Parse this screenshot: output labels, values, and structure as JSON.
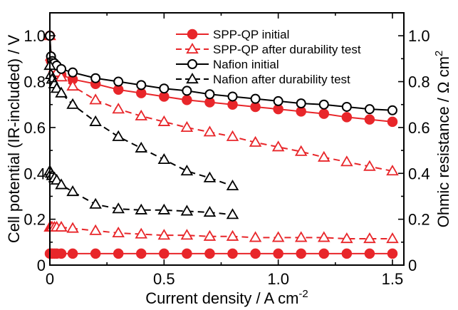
{
  "chart_data": {
    "type": "line",
    "xlabel": "Current density / A cm",
    "xlabel_sup": "-2",
    "ylabel": "Cell potential (IR-included) / V",
    "y2label": "Ohmic resistance / Ω cm",
    "y2label_sup": "2",
    "xlim": [
      0,
      1.55
    ],
    "ylim": [
      0,
      1.1
    ],
    "y2lim": [
      0,
      1.1
    ],
    "x_ticks": [
      0,
      0.5,
      1.0,
      1.5
    ],
    "x_tick_labels": [
      "0",
      "0.5",
      "1.0",
      "1.5"
    ],
    "y_ticks": [
      0,
      0.2,
      0.4,
      0.6,
      0.8,
      1.0
    ],
    "y_tick_labels": [
      "0",
      "0.2",
      "0.4",
      "0.6",
      "0.8",
      "1.0"
    ],
    "y2_ticks": [
      0,
      0.2,
      0.4,
      0.6,
      0.8,
      1.0
    ],
    "y2_tick_labels": [
      "0",
      "0.2",
      "0.4",
      "0.6",
      "0.8",
      "1.0"
    ],
    "legend_position": "top-right",
    "series": [
      {
        "name": "SPP-QP initial",
        "color": "#e8262a",
        "marker": "circle-filled",
        "dash": "solid",
        "legend": true,
        "x": [
          0,
          0.005,
          0.01,
          0.02,
          0.03,
          0.05,
          0.1,
          0.2,
          0.3,
          0.4,
          0.5,
          0.6,
          0.7,
          0.8,
          0.9,
          1.0,
          1.1,
          1.2,
          1.3,
          1.4,
          1.5
        ],
        "y": [
          1.0,
          0.89,
          0.87,
          0.86,
          0.85,
          0.83,
          0.81,
          0.79,
          0.765,
          0.75,
          0.735,
          0.72,
          0.71,
          0.7,
          0.69,
          0.68,
          0.67,
          0.66,
          0.645,
          0.635,
          0.625
        ]
      },
      {
        "name": "SPP-QP after durability test",
        "color": "#e8262a",
        "marker": "triangle-open",
        "dash": "dashed",
        "legend": true,
        "x": [
          0,
          0.005,
          0.01,
          0.02,
          0.03,
          0.05,
          0.1,
          0.2,
          0.3,
          0.4,
          0.5,
          0.6,
          0.7,
          0.8,
          0.9,
          1.0,
          1.1,
          1.2,
          1.3,
          1.4,
          1.5
        ],
        "y": [
          1.0,
          0.91,
          0.88,
          0.86,
          0.84,
          0.82,
          0.78,
          0.72,
          0.68,
          0.65,
          0.625,
          0.6,
          0.58,
          0.56,
          0.535,
          0.515,
          0.495,
          0.47,
          0.45,
          0.43,
          0.41
        ]
      },
      {
        "name": "Nafion initial",
        "color": "#000000",
        "marker": "circle-open",
        "dash": "solid",
        "legend": true,
        "x": [
          0,
          0.005,
          0.01,
          0.02,
          0.03,
          0.05,
          0.1,
          0.2,
          0.3,
          0.4,
          0.5,
          0.6,
          0.7,
          0.8,
          0.9,
          1.0,
          1.1,
          1.2,
          1.3,
          1.4,
          1.5
        ],
        "y": [
          1.0,
          0.91,
          0.89,
          0.88,
          0.87,
          0.855,
          0.84,
          0.815,
          0.8,
          0.785,
          0.77,
          0.76,
          0.745,
          0.735,
          0.725,
          0.715,
          0.705,
          0.7,
          0.69,
          0.68,
          0.675
        ]
      },
      {
        "name": "Nafion after durability test",
        "color": "#000000",
        "marker": "triangle-open",
        "dash": "dashed",
        "legend": true,
        "x": [
          0,
          0.005,
          0.01,
          0.02,
          0.03,
          0.05,
          0.1,
          0.2,
          0.3,
          0.4,
          0.5,
          0.6,
          0.7,
          0.8
        ],
        "y": [
          0.87,
          0.83,
          0.81,
          0.79,
          0.77,
          0.75,
          0.7,
          0.625,
          0.56,
          0.51,
          0.46,
          0.41,
          0.38,
          0.345
        ]
      },
      {
        "name": "",
        "color": "#e8262a",
        "marker": "circle-filled",
        "dash": "solid",
        "legend": false,
        "x": [
          0,
          0.005,
          0.01,
          0.02,
          0.03,
          0.05,
          0.1,
          0.2,
          0.3,
          0.4,
          0.5,
          0.6,
          0.7,
          0.8,
          0.9,
          1.0,
          1.1,
          1.2,
          1.3,
          1.4,
          1.5
        ],
        "y": [
          0.05,
          0.05,
          0.05,
          0.05,
          0.05,
          0.05,
          0.05,
          0.05,
          0.05,
          0.05,
          0.05,
          0.05,
          0.05,
          0.05,
          0.05,
          0.05,
          0.05,
          0.05,
          0.05,
          0.05,
          0.05
        ]
      },
      {
        "name": "",
        "color": "#e8262a",
        "marker": "triangle-open",
        "dash": "dashed",
        "legend": false,
        "x": [
          0,
          0.005,
          0.01,
          0.02,
          0.03,
          0.05,
          0.1,
          0.2,
          0.3,
          0.4,
          0.5,
          0.6,
          0.7,
          0.8,
          0.9,
          1.0,
          1.1,
          1.2,
          1.3,
          1.4,
          1.5
        ],
        "y": [
          0.165,
          0.165,
          0.165,
          0.165,
          0.165,
          0.165,
          0.16,
          0.15,
          0.14,
          0.135,
          0.13,
          0.13,
          0.125,
          0.125,
          0.12,
          0.12,
          0.12,
          0.12,
          0.115,
          0.115,
          0.115
        ]
      },
      {
        "name": "",
        "color": "#000000",
        "marker": "triangle-open",
        "dash": "dashed",
        "legend": false,
        "x": [
          0,
          0.005,
          0.01,
          0.02,
          0.03,
          0.05,
          0.1,
          0.2,
          0.3,
          0.4,
          0.5,
          0.6,
          0.7,
          0.8
        ],
        "y": [
          0.41,
          0.4,
          0.39,
          0.38,
          0.37,
          0.35,
          0.32,
          0.265,
          0.245,
          0.24,
          0.24,
          0.235,
          0.23,
          0.22
        ]
      }
    ]
  }
}
